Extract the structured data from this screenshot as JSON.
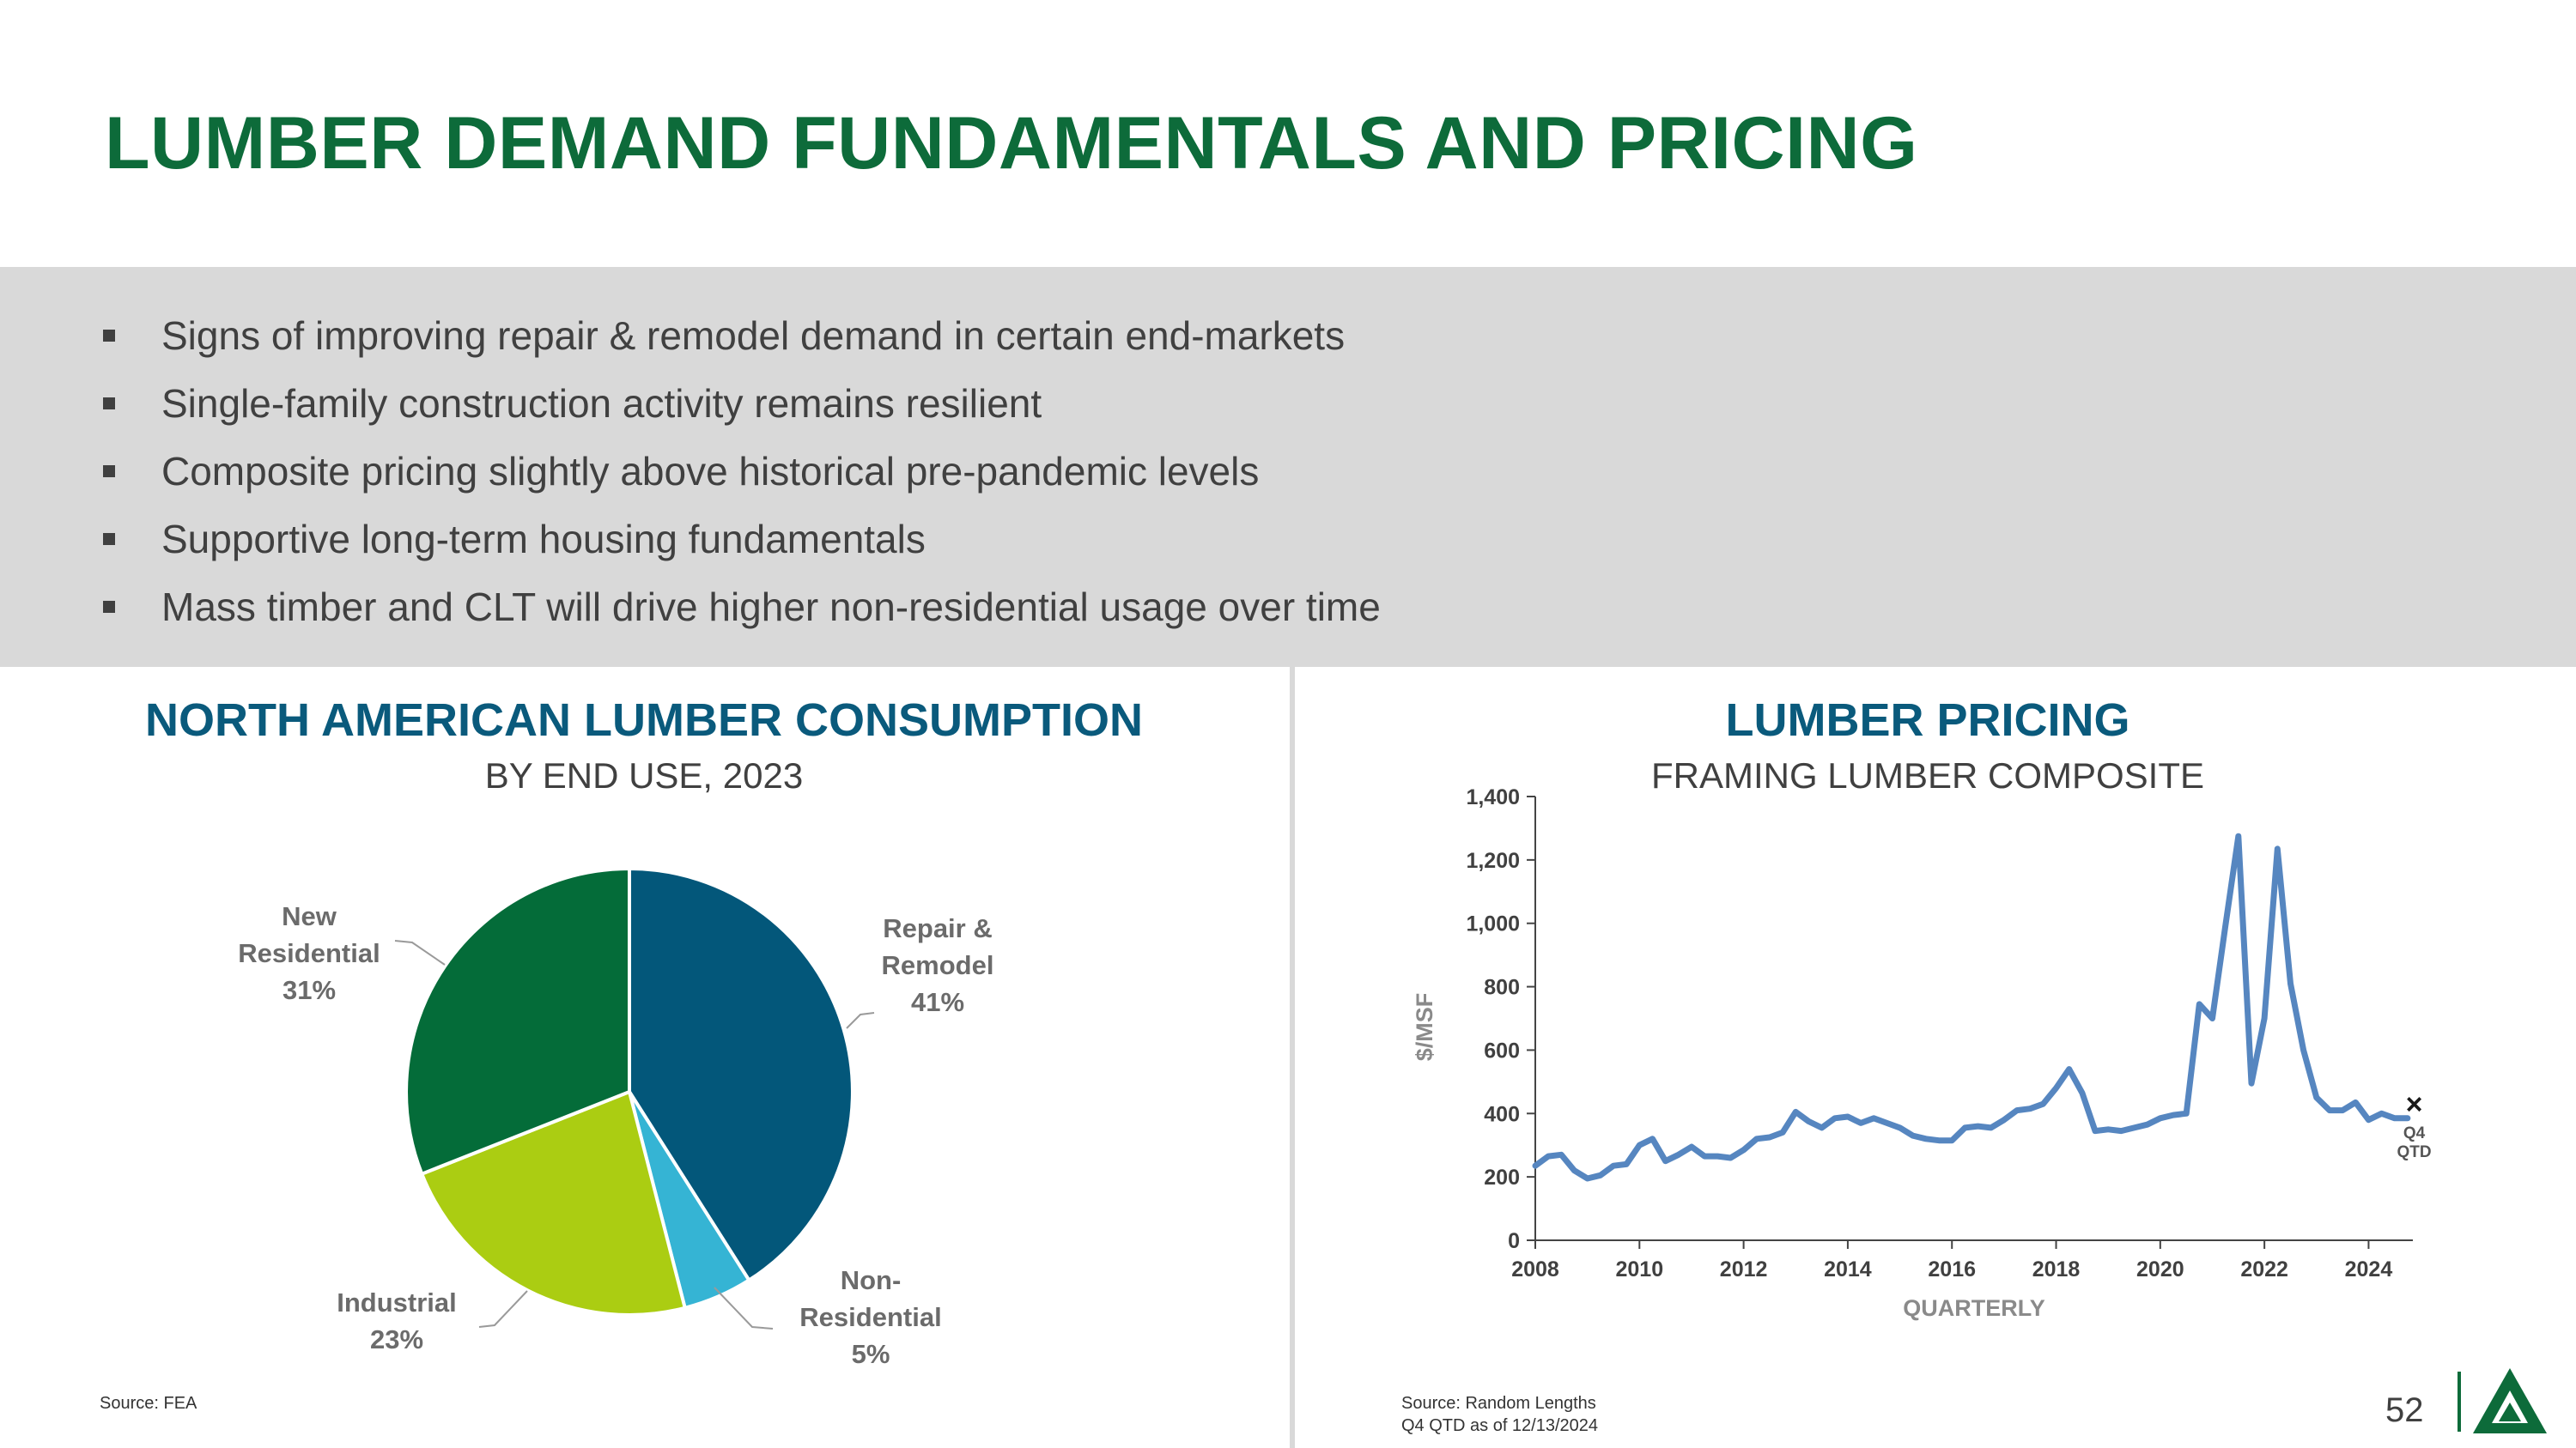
{
  "title": "LUMBER DEMAND FUNDAMENTALS AND PRICING",
  "bullets": [
    "Signs of improving repair & remodel demand in certain end-markets",
    "Single-family construction activity remains resilient",
    "Composite pricing slightly above historical pre-pandemic levels",
    "Supportive long-term housing fundamentals",
    "Mass timber and CLT will drive higher non-residential usage over time"
  ],
  "left_panel": {
    "title": "NORTH AMERICAN LUMBER CONSUMPTION",
    "subtitle": "BY END USE, 2023",
    "source": "Source: FEA"
  },
  "right_panel": {
    "title": "LUMBER PRICING",
    "subtitle": "FRAMING LUMBER COMPOSITE",
    "source_line1": "Source: Random Lengths",
    "source_line2": "Q4 QTD as of 12/13/2024"
  },
  "page_number": "52",
  "colors": {
    "title_green": "#0d6b3a",
    "panel_blue": "#0a5a7c",
    "repair": "#03577a",
    "non_res": "#35b4d4",
    "industrial": "#abcd12",
    "new_res": "#046c39",
    "line": "#5686c0"
  },
  "chart_data": [
    {
      "type": "pie",
      "title": "NORTH AMERICAN LUMBER CONSUMPTION",
      "subtitle": "BY END USE, 2023",
      "slices": [
        {
          "label_lines": [
            "Repair &",
            "Remodel"
          ],
          "value": 41,
          "pct_label": "41%",
          "color": "#03577a"
        },
        {
          "label_lines": [
            "Non-",
            "Residential"
          ],
          "value": 5,
          "pct_label": "5%",
          "color": "#35b4d4"
        },
        {
          "label_lines": [
            "Industrial"
          ],
          "value": 23,
          "pct_label": "23%",
          "color": "#abcd12"
        },
        {
          "label_lines": [
            "New",
            "Residential"
          ],
          "value": 31,
          "pct_label": "31%",
          "color": "#046c39"
        }
      ]
    },
    {
      "type": "line",
      "title": "LUMBER PRICING",
      "subtitle": "FRAMING LUMBER COMPOSITE",
      "xlabel": "QUARTERLY",
      "ylabel": "$/MSF",
      "ylim": [
        0,
        1400
      ],
      "yticks": [
        0,
        200,
        400,
        600,
        800,
        1000,
        1200,
        1400
      ],
      "ytick_labels": [
        "0",
        "200",
        "400",
        "600",
        "800",
        "1,000",
        "1,200",
        "1,400"
      ],
      "xticks": [
        2008,
        2010,
        2012,
        2014,
        2016,
        2018,
        2020,
        2022,
        2024
      ],
      "x_start": 2008,
      "step_per_quarter": 0.25,
      "y": [
        235,
        265,
        270,
        220,
        195,
        205,
        235,
        240,
        300,
        320,
        250,
        270,
        295,
        265,
        265,
        260,
        285,
        320,
        325,
        340,
        405,
        375,
        355,
        385,
        390,
        370,
        385,
        370,
        355,
        330,
        320,
        315,
        315,
        355,
        360,
        355,
        380,
        410,
        415,
        430,
        480,
        540,
        465,
        345,
        350,
        345,
        355,
        365,
        385,
        395,
        400,
        745,
        700,
        990,
        1275,
        495,
        700,
        1235,
        810,
        600,
        450,
        410,
        410,
        435,
        380,
        400,
        385,
        385
      ],
      "annotation": {
        "marker": "×",
        "x": 2024.875,
        "y": 430,
        "text_lines": [
          "Q4",
          "QTD"
        ]
      }
    }
  ]
}
